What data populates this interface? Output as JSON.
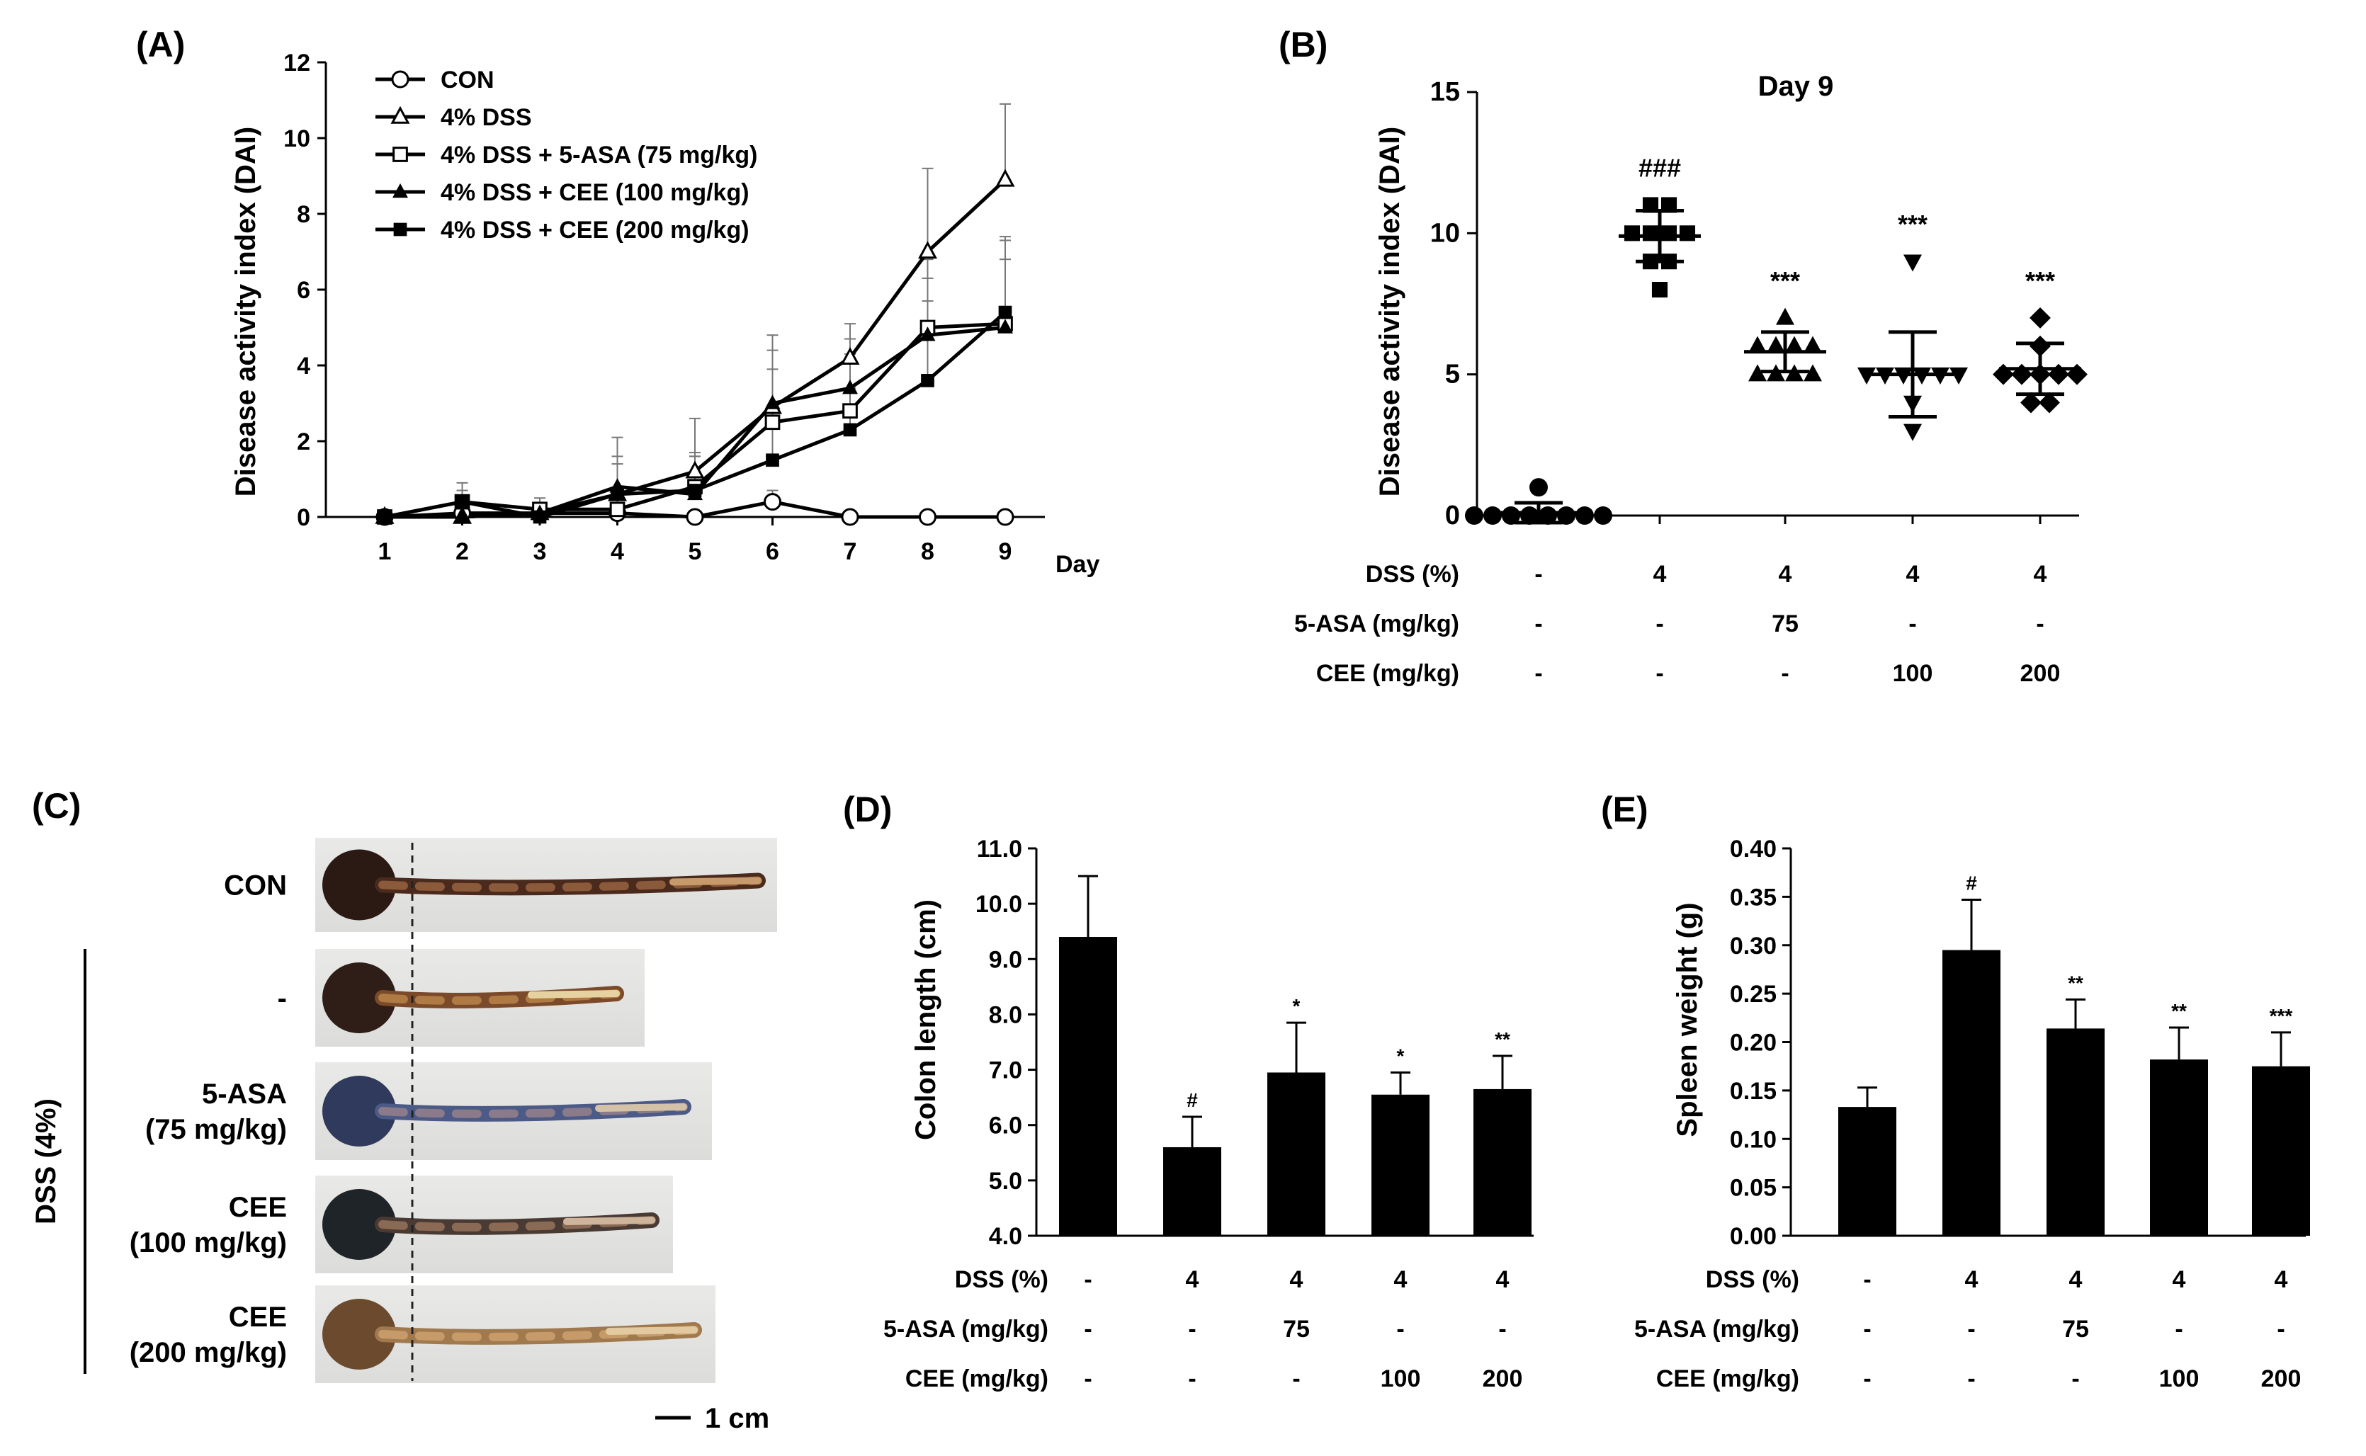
{
  "chart_data": [
    {
      "panel": "(A)",
      "type": "line",
      "xlabel": "Day",
      "ylabel": "Disease activity index (DAI)",
      "x": [
        1,
        2,
        3,
        4,
        5,
        6,
        7,
        8,
        9
      ],
      "ylim": [
        0,
        12
      ],
      "yticks": [
        "0",
        "2",
        "4",
        "6",
        "8",
        "10",
        "12"
      ],
      "xticks": [
        "1",
        "2",
        "3",
        "4",
        "5",
        "6",
        "7",
        "8",
        "9"
      ],
      "legend_position": "top-left",
      "series": [
        {
          "name": "CON",
          "marker": "open-circle",
          "values": [
            0,
            0.1,
            0.1,
            0.1,
            0,
            0.4,
            0,
            0,
            0
          ],
          "errors": [
            0,
            0.1,
            0.1,
            0.1,
            0,
            0.3,
            0,
            0,
            0
          ]
        },
        {
          "name": "4% DSS",
          "marker": "open-triangle",
          "values": [
            0,
            0,
            0.1,
            0.6,
            1.2,
            2.9,
            4.2,
            7.0,
            8.9
          ],
          "errors": [
            0,
            0.2,
            0.2,
            1.5,
            1.4,
            1.9,
            0.9,
            2.2,
            2.0
          ]
        },
        {
          "name": "4% DSS + 5-ASA (75 mg/kg)",
          "marker": "open-square",
          "values": [
            0,
            0.4,
            0.2,
            0.2,
            0.8,
            2.5,
            2.8,
            5.0,
            5.1
          ],
          "errors": [
            0,
            0.5,
            0.3,
            0.5,
            0.9,
            1.4,
            1.5,
            1.8,
            1.7
          ]
        },
        {
          "name": "4% DSS + CEE (100 mg/kg)",
          "marker": "filled-triangle",
          "values": [
            0,
            0,
            0.1,
            0.8,
            0.6,
            3.0,
            3.4,
            4.8,
            5.0
          ],
          "errors": [
            0,
            0.2,
            0.2,
            0.8,
            1.0,
            1.4,
            1.3,
            1.5,
            2.3
          ]
        },
        {
          "name": "4% DSS + CEE (200 mg/kg)",
          "marker": "filled-square",
          "values": [
            0,
            0.4,
            0,
            0.6,
            0.7,
            1.5,
            2.3,
            3.6,
            5.4
          ],
          "errors": [
            0,
            0.3,
            0.3,
            0.8,
            0.9,
            0.9,
            1.1,
            2.1,
            2.0
          ]
        }
      ]
    },
    {
      "panel": "(B)",
      "type": "scatter",
      "title": "Day 9",
      "ylabel": "Disease activity index (DAI)",
      "ylim": [
        0,
        15
      ],
      "yticks": [
        "0",
        "5",
        "10",
        "15"
      ],
      "groups": [
        {
          "marker": "circle",
          "points": [
            0,
            0,
            0,
            0,
            0,
            0,
            0,
            0,
            1
          ],
          "mean": 0.1,
          "sd": 0.35,
          "sig": ""
        },
        {
          "marker": "square",
          "points": [
            8,
            9,
            9,
            10,
            10,
            10,
            10,
            11,
            11
          ],
          "mean": 9.9,
          "sd": 0.9,
          "sig": "###"
        },
        {
          "marker": "triangle-up",
          "points": [
            5,
            5,
            5,
            5,
            6,
            6,
            6,
            6,
            7
          ],
          "mean": 5.8,
          "sd": 0.7,
          "sig": "***"
        },
        {
          "marker": "triangle-down",
          "points": [
            3,
            4,
            5,
            5,
            5,
            5,
            5,
            5,
            9
          ],
          "mean": 5.0,
          "sd": 1.5,
          "sig": "***"
        },
        {
          "marker": "diamond",
          "points": [
            4,
            4,
            5,
            5,
            5,
            5,
            5,
            6,
            7
          ],
          "mean": 5.2,
          "sd": 0.9,
          "sig": "***"
        }
      ],
      "table": {
        "rows": [
          {
            "label": "DSS (%)",
            "cells": [
              "-",
              "4",
              "4",
              "4",
              "4"
            ]
          },
          {
            "label": "5-ASA (mg/kg)",
            "cells": [
              "-",
              "-",
              "75",
              "-",
              "-"
            ]
          },
          {
            "label": "CEE (mg/kg)",
            "cells": [
              "-",
              "-",
              "-",
              "100",
              "200"
            ]
          }
        ]
      }
    },
    {
      "panel": "(D)",
      "type": "bar",
      "ylabel": "Colon length (cm)",
      "ylim": [
        4.0,
        11.0
      ],
      "yticks": [
        "4.0",
        "5.0",
        "6.0",
        "7.0",
        "8.0",
        "9.0",
        "10.0",
        "11.0"
      ],
      "values": [
        9.4,
        5.6,
        6.95,
        6.55,
        6.65
      ],
      "errors": [
        1.1,
        0.55,
        0.9,
        0.4,
        0.6
      ],
      "sig": [
        "",
        "#",
        "*",
        "*",
        "**"
      ],
      "table": {
        "rows": [
          {
            "label": "DSS (%)",
            "cells": [
              "-",
              "4",
              "4",
              "4",
              "4"
            ]
          },
          {
            "label": "5-ASA (mg/kg)",
            "cells": [
              "-",
              "-",
              "75",
              "-",
              "-"
            ]
          },
          {
            "label": "CEE (mg/kg)",
            "cells": [
              "-",
              "-",
              "-",
              "100",
              "200"
            ]
          }
        ]
      }
    },
    {
      "panel": "(E)",
      "type": "bar",
      "ylabel": "Spleen weight (g)",
      "ylim": [
        0,
        0.4
      ],
      "yticks": [
        "0.00",
        "0.05",
        "0.10",
        "0.15",
        "0.20",
        "0.25",
        "0.30",
        "0.35",
        "0.40"
      ],
      "values": [
        0.133,
        0.295,
        0.214,
        0.182,
        0.175
      ],
      "errors": [
        0.02,
        0.052,
        0.03,
        0.033,
        0.035
      ],
      "sig": [
        "",
        "#",
        "**",
        "**",
        "***"
      ],
      "table": {
        "rows": [
          {
            "label": "DSS (%)",
            "cells": [
              "-",
              "4",
              "4",
              "4",
              "4"
            ]
          },
          {
            "label": "5-ASA (mg/kg)",
            "cells": [
              "-",
              "-",
              "75",
              "-",
              "-"
            ]
          },
          {
            "label": "CEE (mg/kg)",
            "cells": [
              "-",
              "-",
              "-",
              "100",
              "200"
            ]
          }
        ]
      }
    }
  ],
  "photo_panel": {
    "panel": "(C)",
    "group_label": "DSS (4%)",
    "scale_label": "1 cm",
    "rows": [
      {
        "label_lines": [
          "CON"
        ],
        "tissue": "dark"
      },
      {
        "label_lines": [
          "-"
        ],
        "tissue": "mixed"
      },
      {
        "label_lines": [
          "5-ASA",
          "(75 mg/kg)"
        ],
        "tissue": "blue"
      },
      {
        "label_lines": [
          "CEE",
          "(100 mg/kg)"
        ],
        "tissue": "darkmixed"
      },
      {
        "label_lines": [
          "CEE",
          "(200 mg/kg)"
        ],
        "tissue": "pale"
      }
    ]
  }
}
